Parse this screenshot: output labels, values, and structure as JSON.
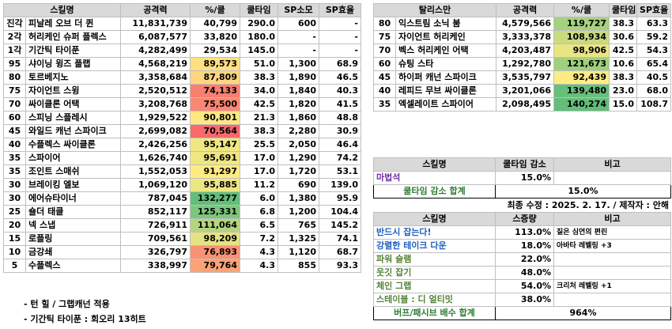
{
  "left_table": {
    "header": [
      "스킬명",
      "공격력",
      "%/쿨",
      "쿨타임",
      "SP소모",
      "SP효율"
    ],
    "rows": [
      [
        "진각",
        "피날레 오브 더 퀸",
        "11,831,739",
        "40,799",
        "290.0",
        "600",
        "-"
      ],
      [
        "2각",
        "허리케인 슈퍼 플렉스",
        "6,087,577",
        "33,820",
        "180.0",
        "-",
        "-"
      ],
      [
        "1각",
        "기간틱 타이푼",
        "4,282,499",
        "29,534",
        "145.0",
        "-",
        "-"
      ],
      [
        "95",
        "샤이닝 윙즈 플랩",
        "4,568,219",
        "89,573",
        "51.0",
        "1,300",
        "68.9"
      ],
      [
        "80",
        "토르베지노",
        "3,358,684",
        "87,809",
        "38.3",
        "1,890",
        "46.5"
      ],
      [
        "75",
        "자이언트 스윙",
        "2,520,512",
        "74,133",
        "34.0",
        "1,840",
        "40.3"
      ],
      [
        "70",
        "싸이클론 어택",
        "3,208,768",
        "75,500",
        "42.5",
        "1,820",
        "41.5"
      ],
      [
        "60",
        "스피닝 스플레시",
        "1,929,522",
        "90,801",
        "21.3",
        "1,860",
        "48.8"
      ],
      [
        "45",
        "와일드 캐넌 스파이크",
        "2,699,082",
        "70,564",
        "38.3",
        "2,280",
        "30.9"
      ],
      [
        "40",
        "수플렉스 싸이클론",
        "2,426,256",
        "95,147",
        "25.5",
        "2,050",
        "46.4"
      ],
      [
        "35",
        "스파이어",
        "1,626,740",
        "95,691",
        "17.0",
        "1,290",
        "74.2"
      ],
      [
        "35",
        "조인트 스매쉬",
        "1,552,053",
        "91,297",
        "17.0",
        "1,720",
        "53.1"
      ],
      [
        "30",
        "브레이킹 엘보",
        "1,069,120",
        "95,885",
        "11.2",
        "690",
        "139.0"
      ],
      [
        "30",
        "에어슈타이너",
        "787,045",
        "132,277",
        "6.0",
        "1,380",
        "95.9"
      ],
      [
        "25",
        "숄더 태클",
        "852,117",
        "125,331",
        "6.8",
        "1,200",
        "104.4"
      ],
      [
        "20",
        "넥 스냅",
        "726,911",
        "111,064",
        "6.5",
        "765",
        "145.2"
      ],
      [
        "15",
        "로플링",
        "709,561",
        "98,209",
        "7.2",
        "1,325",
        "74.1"
      ],
      [
        "10",
        "금강쇄",
        "326,797",
        "76,893",
        "4.3",
        "1,120",
        "68.7"
      ],
      [
        "5",
        "수플렉스",
        "338,997",
        "79,764",
        "4.3",
        "855",
        "93.3"
      ]
    ]
  },
  "talisman_table": {
    "header": [
      "탈리스만",
      "공격력",
      "%/쿨",
      "쿨타임",
      "SP효율"
    ],
    "rows": [
      [
        "80",
        "익스트림 소닉 붐",
        "4,579,566",
        "119,727",
        "38.3",
        "63.3"
      ],
      [
        "75",
        "자이언트 허리케인",
        "3,333,378",
        "108,934",
        "30.6",
        "59.2"
      ],
      [
        "70",
        "벡스 허리케인 어택",
        "4,203,487",
        "98,906",
        "42.5",
        "54.3"
      ],
      [
        "60",
        "슈팅 스타",
        "1,292,780",
        "121,673",
        "10.6",
        "65.4"
      ],
      [
        "45",
        "하이퍼 캐넌 스파이크",
        "3,535,797",
        "92,439",
        "38.3",
        "40.5"
      ],
      [
        "40",
        "레피드 무브 싸이클론",
        "3,201,066",
        "139,480",
        "23.0",
        "68.0"
      ],
      [
        "35",
        "엑셀레이트 스파이어",
        "2,098,495",
        "140,274",
        "15.0",
        "108.7"
      ]
    ]
  },
  "cooldown_table": {
    "header": [
      "스킬명",
      "쿨타임 감소",
      "비고"
    ],
    "rows": [
      {
        "name": "마법석",
        "value": "15.0%"
      }
    ],
    "total": {
      "label": "쿨타임 감소 합계",
      "value": "15.0%"
    }
  },
  "updated_note": "최종 수정 : 2025. 2. 17. / 제작자 : 안해",
  "buff_table": {
    "header": [
      "스킬명",
      "스증량",
      "비고"
    ],
    "rows": [
      {
        "name": "반드시 잡는다!",
        "value": "113.0%",
        "note": "짙은 심연의 편린"
      },
      {
        "name": "강렬한 테이크 다운",
        "value": "18.0%",
        "note": "아바타 레벨링 +3"
      },
      {
        "name": "파워 슬램",
        "value": "22.0%"
      },
      {
        "name": "웃깃 잡기",
        "value": "48.0%"
      },
      {
        "name": "체인 그랩",
        "value": "54.0%",
        "note": "크리처 레벨링 +1"
      },
      {
        "name": "스테이블 : 디 얼티밋",
        "value": "38.0%"
      }
    ],
    "total": {
      "label": "버프/패시브 배수 합계",
      "value": "964%"
    }
  },
  "footnotes": [
    "- 턴 힐 / 그랩캐넌 적용",
    "- 기간틱 타이푼 : 회오리 13히트"
  ]
}
